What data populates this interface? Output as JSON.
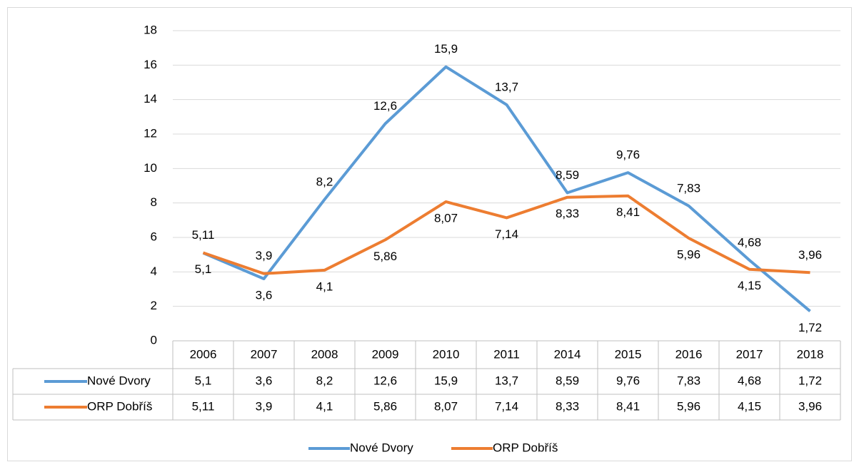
{
  "chart_data": {
    "type": "line",
    "categories": [
      "2006",
      "2007",
      "2008",
      "2009",
      "2010",
      "2011",
      "2014",
      "2015",
      "2016",
      "2017",
      "2018"
    ],
    "series": [
      {
        "name": "Nové Dvory",
        "color": "#5b9bd5",
        "values": [
          5.1,
          3.6,
          8.2,
          12.6,
          15.9,
          13.7,
          8.59,
          9.76,
          7.83,
          4.68,
          1.72
        ],
        "value_labels": [
          "5,1",
          "3,6",
          "8,2",
          "12,6",
          "15,9",
          "13,7",
          "8,59",
          "9,76",
          "7,83",
          "4,68",
          "1,72"
        ]
      },
      {
        "name": "ORP Dobříš",
        "color": "#ed7d31",
        "values": [
          5.11,
          3.9,
          4.1,
          5.86,
          8.07,
          7.14,
          8.33,
          8.41,
          5.96,
          4.15,
          3.96
        ],
        "value_labels": [
          "5,11",
          "3,9",
          "4,1",
          "5,86",
          "8,07",
          "7,14",
          "8,33",
          "8,41",
          "5,96",
          "4,15",
          "3,96"
        ]
      }
    ],
    "ylim": [
      0,
      18
    ],
    "yticks": [
      0,
      2,
      4,
      6,
      8,
      10,
      12,
      14,
      16,
      18
    ],
    "grid": true,
    "legend": "bottom",
    "data_table": true
  }
}
